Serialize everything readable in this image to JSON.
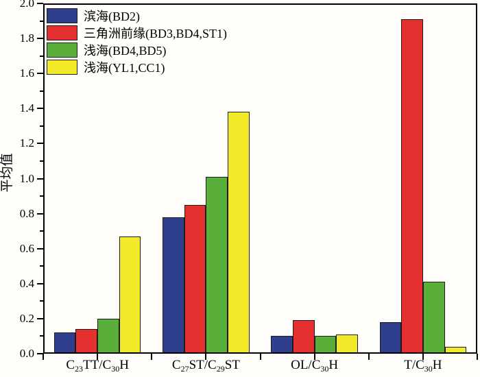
{
  "chart_data": {
    "type": "bar",
    "title": "",
    "xlabel": "",
    "ylabel": "平均值",
    "ylim": [
      0,
      2.0
    ],
    "ytick_step": 0.2,
    "ytick_labels": [
      "0.0",
      "0.2",
      "0.4",
      "0.6",
      "0.8",
      "1.0",
      "1.2",
      "1.4",
      "1.6",
      "1.8",
      "2.0"
    ],
    "minor_ticks": true,
    "grid": false,
    "legend_position": "top-left",
    "axis_color": "#000000",
    "bar_outline_color": "#1c1c1c",
    "categories": [
      {
        "parts": [
          {
            "t": "C"
          },
          {
            "t": "23",
            "sub": true
          },
          {
            "t": "TT/C"
          },
          {
            "t": "30",
            "sub": true
          },
          {
            "t": "H"
          }
        ]
      },
      {
        "parts": [
          {
            "t": "C"
          },
          {
            "t": "27",
            "sub": true
          },
          {
            "t": "ST/C"
          },
          {
            "t": "29",
            "sub": true
          },
          {
            "t": "ST"
          }
        ]
      },
      {
        "parts": [
          {
            "t": "OL/C"
          },
          {
            "t": "30",
            "sub": true
          },
          {
            "t": "H"
          }
        ]
      },
      {
        "parts": [
          {
            "t": "T/C"
          },
          {
            "t": "30",
            "sub": true
          },
          {
            "t": "H"
          }
        ]
      }
    ],
    "series": [
      {
        "name": "滨海(BD2)",
        "color": "#2F3E8D",
        "values": [
          0.12,
          0.78,
          0.1,
          0.18
        ]
      },
      {
        "name": "三角洲前缘(BD3,BD4,ST1)",
        "color": "#E53030",
        "values": [
          0.14,
          0.85,
          0.19,
          1.91
        ]
      },
      {
        "name": "浅海(BD4,BD5)",
        "color": "#5AAF3B",
        "values": [
          0.2,
          1.01,
          0.1,
          0.41
        ]
      },
      {
        "name": "浅海(YL1,CC1)",
        "color": "#F2E928",
        "values": [
          0.67,
          1.38,
          0.11,
          0.04
        ]
      }
    ]
  }
}
